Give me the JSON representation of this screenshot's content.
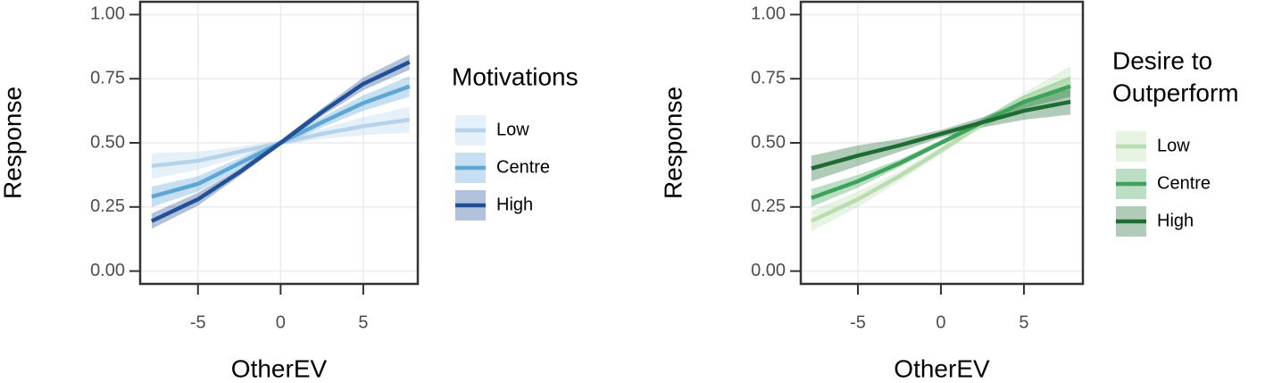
{
  "chart_data": [
    {
      "type": "line",
      "xlabel": "OtherEV",
      "ylabel": "Response",
      "legend_title": [
        "Motivations"
      ],
      "x": [
        -7.8,
        -5,
        -2.5,
        0,
        2.5,
        5,
        7.8
      ],
      "series": [
        {
          "name": "Low",
          "color": "#b7d3ea",
          "values": [
            0.41,
            0.43,
            0.465,
            0.5,
            0.535,
            0.565,
            0.59
          ],
          "lower": [
            0.36,
            0.395,
            0.445,
            0.49,
            0.515,
            0.53,
            0.54
          ],
          "upper": [
            0.46,
            0.465,
            0.485,
            0.51,
            0.555,
            0.6,
            0.64
          ]
        },
        {
          "name": "Centre",
          "color": "#5ea6d6",
          "values": [
            0.29,
            0.34,
            0.42,
            0.5,
            0.58,
            0.655,
            0.72
          ],
          "lower": [
            0.25,
            0.31,
            0.4,
            0.49,
            0.56,
            0.625,
            0.68
          ],
          "upper": [
            0.33,
            0.37,
            0.44,
            0.51,
            0.6,
            0.685,
            0.76
          ]
        },
        {
          "name": "High",
          "color": "#234f96",
          "values": [
            0.195,
            0.28,
            0.385,
            0.5,
            0.62,
            0.73,
            0.815
          ],
          "lower": [
            0.165,
            0.255,
            0.37,
            0.49,
            0.605,
            0.705,
            0.785
          ],
          "upper": [
            0.225,
            0.305,
            0.4,
            0.51,
            0.635,
            0.755,
            0.845
          ]
        }
      ],
      "xlim": [
        -8.5,
        8.3
      ],
      "xticks": [
        -5,
        0,
        5
      ],
      "ylim": [
        -0.05,
        1.05
      ],
      "yticks": [
        {
          "value": 0,
          "label": "0.00"
        },
        {
          "value": 0.25,
          "label": "0.25"
        },
        {
          "value": 0.5,
          "label": "0.50"
        },
        {
          "value": 0.75,
          "label": "0.75"
        },
        {
          "value": 1,
          "label": "1.00"
        }
      ],
      "grid": true
    },
    {
      "type": "line",
      "xlabel": "OtherEV",
      "ylabel": "Response",
      "legend_title": [
        "Desire to",
        "Outperform"
      ],
      "x": [
        -7.8,
        -5,
        -2.5,
        0,
        2.5,
        5,
        7.8
      ],
      "series": [
        {
          "name": "Low",
          "color": "#b9dcb0",
          "values": [
            0.195,
            0.28,
            0.37,
            0.47,
            0.575,
            0.665,
            0.74
          ],
          "lower": [
            0.155,
            0.25,
            0.35,
            0.455,
            0.56,
            0.635,
            0.68
          ],
          "upper": [
            0.235,
            0.31,
            0.39,
            0.485,
            0.59,
            0.695,
            0.8
          ]
        },
        {
          "name": "Centre",
          "color": "#3da25a",
          "values": [
            0.285,
            0.35,
            0.42,
            0.5,
            0.58,
            0.66,
            0.72
          ],
          "lower": [
            0.25,
            0.325,
            0.405,
            0.49,
            0.565,
            0.635,
            0.68
          ],
          "upper": [
            0.32,
            0.375,
            0.435,
            0.51,
            0.595,
            0.685,
            0.76
          ]
        },
        {
          "name": "High",
          "color": "#1e6b33",
          "values": [
            0.4,
            0.45,
            0.49,
            0.535,
            0.58,
            0.625,
            0.66
          ],
          "lower": [
            0.35,
            0.41,
            0.465,
            0.52,
            0.56,
            0.59,
            0.61
          ],
          "upper": [
            0.45,
            0.49,
            0.515,
            0.55,
            0.6,
            0.66,
            0.71
          ]
        }
      ],
      "xlim": [
        -8.44,
        8.55
      ],
      "xticks": [
        -5,
        0,
        5
      ],
      "ylim": [
        -0.05,
        1.05
      ],
      "yticks": [
        {
          "value": 0,
          "label": "0.00"
        },
        {
          "value": 0.25,
          "label": "0.25"
        },
        {
          "value": 0.5,
          "label": "0.50"
        },
        {
          "value": 0.75,
          "label": "0.75"
        },
        {
          "value": 1,
          "label": "1.00"
        }
      ],
      "grid": true
    }
  ]
}
